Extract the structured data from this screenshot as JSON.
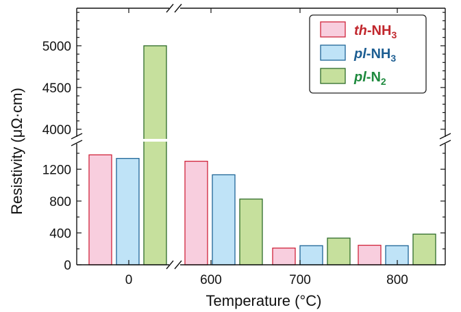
{
  "chart_data": {
    "type": "bar",
    "xlabel": "Temperature (°C)",
    "ylabel": "Resistivity (μΩ·cm)",
    "categories": [
      "0",
      "600",
      "700",
      "800"
    ],
    "series": [
      {
        "name": "th-NH3",
        "prefix": "th",
        "suffix": "-NH",
        "subscript": "3",
        "fill": "#f8cede",
        "stroke": "#d0233a",
        "text_color": "#c1272d",
        "values": [
          1380,
          1300,
          210,
          245
        ]
      },
      {
        "name": "pl-NH3",
        "prefix": "pl",
        "suffix": "-NH",
        "subscript": "3",
        "fill": "#bfe3f7",
        "stroke": "#1d6496",
        "text_color": "#1d5e92",
        "values": [
          1335,
          1130,
          240,
          240
        ]
      },
      {
        "name": "pl-N2",
        "prefix": "pl",
        "suffix": "-N",
        "subscript": "2",
        "fill": "#c6e09d",
        "stroke": "#2e6b2a",
        "text_color": "#1e8a3e",
        "values": [
          5000,
          825,
          335,
          385
        ]
      }
    ],
    "y_axis_lower": {
      "range": [
        0,
        1400
      ],
      "ticks": [
        0,
        400,
        800,
        1200
      ]
    },
    "y_axis_upper": {
      "range": [
        3950,
        5450
      ],
      "ticks": [
        4000,
        4500,
        5000
      ]
    },
    "x_axis_break": "between 0 and 600",
    "y_axis_break": "between 1400 and 3950",
    "legend_position": "top-right",
    "grid": false
  }
}
